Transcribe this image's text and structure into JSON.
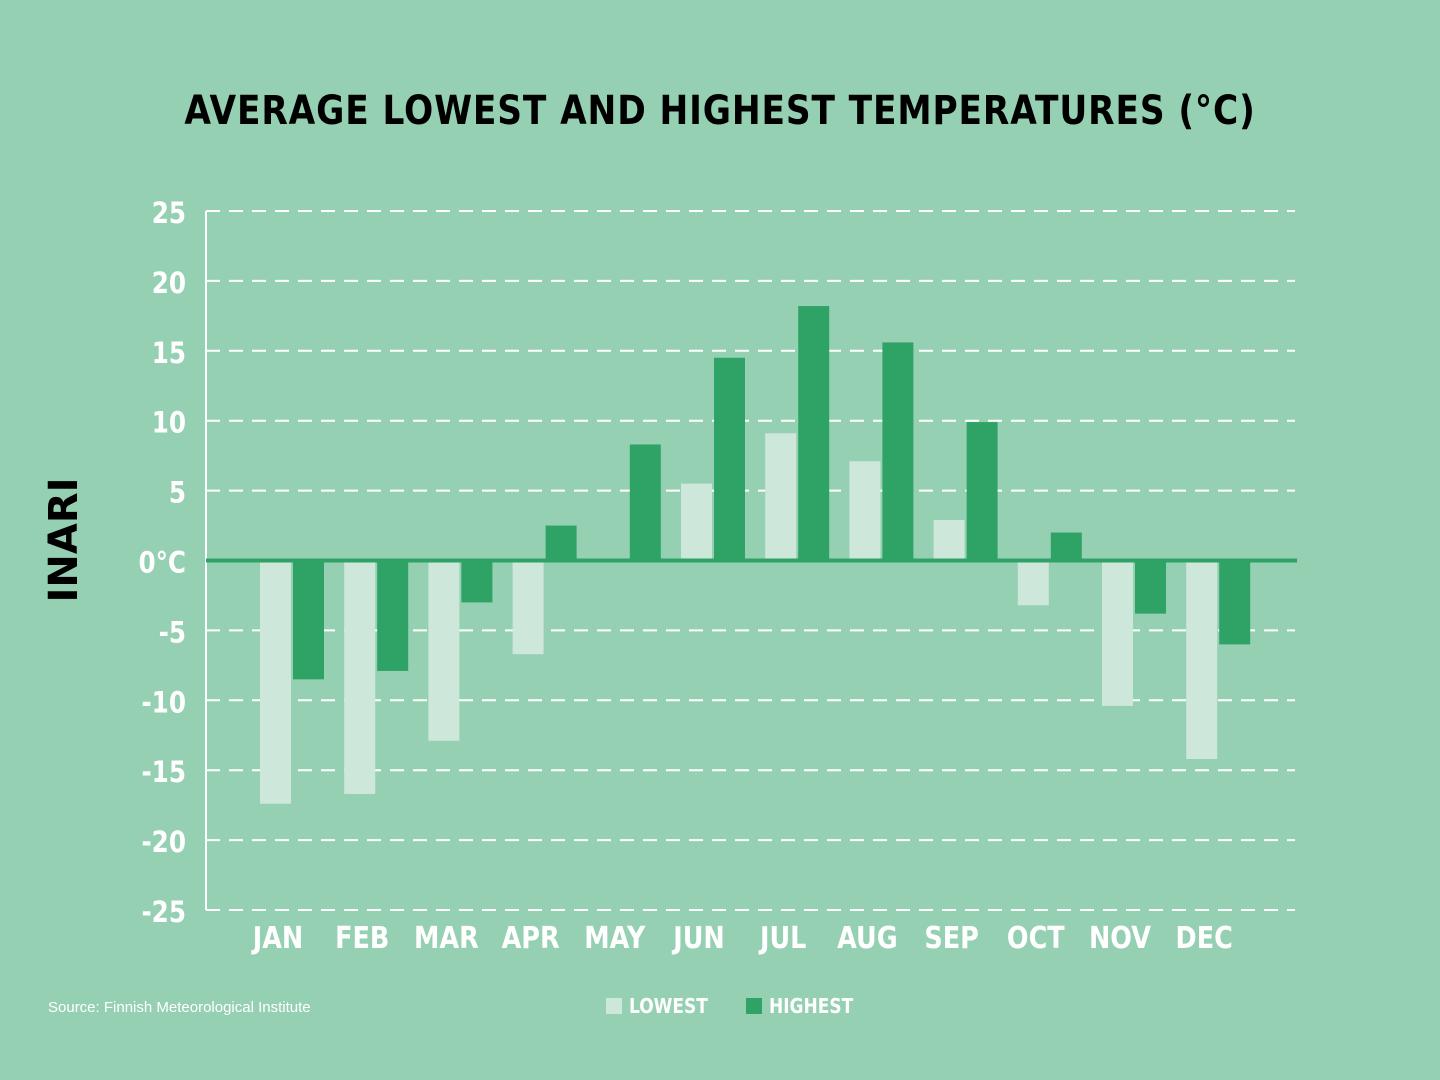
{
  "chart_data": {
    "type": "bar",
    "title": "AVERAGE LOWEST AND HIGHEST TEMPERATURES (°C)",
    "ylabel": "INARI",
    "xlabel": "",
    "categories": [
      "JAN",
      "FEB",
      "MAR",
      "APR",
      "MAY",
      "JUN",
      "JUL",
      "AUG",
      "SEP",
      "OCT",
      "NOV",
      "DEC"
    ],
    "series": [
      {
        "name": "LOWEST",
        "color": "#cde7da",
        "values": [
          -17.4,
          -16.7,
          -12.9,
          -6.7,
          0,
          5.5,
          9.1,
          7.1,
          2.9,
          -3.2,
          -10.4,
          -14.2
        ]
      },
      {
        "name": "HIGHEST",
        "color": "#2fa266",
        "values": [
          -8.5,
          -7.9,
          -3.0,
          2.5,
          8.3,
          14.5,
          18.2,
          15.6,
          9.9,
          2.0,
          -3.8,
          -6.0
        ]
      }
    ],
    "ylim": [
      -25,
      25
    ],
    "yticks": [
      25,
      20,
      15,
      10,
      5,
      0,
      -5,
      -10,
      -15,
      -20,
      -25
    ],
    "ytick_labels": [
      "25",
      "20",
      "15",
      "10",
      "5",
      "0°C",
      "-5",
      "-10",
      "-15",
      "-20",
      "-25"
    ],
    "grid": "dashed horizontal",
    "legend": "bottom-center",
    "annotations": [
      "Source: Finnish Meteorological Institute"
    ]
  },
  "colors": {
    "background": "#96d0b3",
    "zero_line": "#2fa266",
    "grid": "#ffffff",
    "text_light": "#ffffff",
    "text_dark": "#000000"
  }
}
